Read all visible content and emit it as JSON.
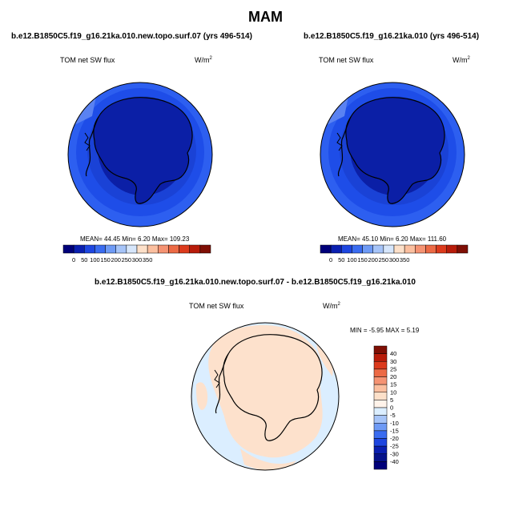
{
  "figure": {
    "title": "MAM",
    "colors": {
      "ocean_deep": "#0a28b8",
      "ocean_mid": "#1e4de8",
      "ocean_light": "#2d5ff0",
      "ice": "#0b1fa6",
      "diff_neutral": "#dbeeff",
      "diff_warm": "#fde1cc",
      "coast": "#000000"
    }
  },
  "panels": [
    {
      "title": "b.e12.B1850C5.f19_g16.21ka.010.new.topo.surf.07 (yrs 496-514)",
      "variable": "TOM net SW flux",
      "units": "W/m",
      "units_sup": "2",
      "stats": "MEAN=  44.45  Min=   6.20  Max= 109.23",
      "colorbar": {
        "labels": [
          "0",
          "50",
          "100",
          "150",
          "200",
          "250",
          "300",
          "350"
        ],
        "colors": [
          "#00007a",
          "#0a1fb0",
          "#1e46e0",
          "#3a6cf0",
          "#6e9af5",
          "#a6c4f8",
          "#d6e6fb",
          "#fde0c9",
          "#fbbf9f",
          "#f59373",
          "#ec6a45",
          "#dc3a1c",
          "#b81c0a",
          "#7f0f05"
        ]
      }
    },
    {
      "title": "b.e12.B1850C5.f19_g16.21ka.010 (yrs 496-514)",
      "variable": "TOM net SW flux",
      "units": "W/m",
      "units_sup": "2",
      "stats": "MEAN=  45.10  Min=   6.20  Max= 111.60",
      "colorbar": {
        "labels": [
          "0",
          "50",
          "100",
          "150",
          "200",
          "250",
          "300",
          "350"
        ],
        "colors": [
          "#00007a",
          "#0a1fb0",
          "#1e46e0",
          "#3a6cf0",
          "#6e9af5",
          "#a6c4f8",
          "#d6e6fb",
          "#fde0c9",
          "#fbbf9f",
          "#f59373",
          "#ec6a45",
          "#dc3a1c",
          "#b81c0a",
          "#7f0f05"
        ]
      }
    }
  ],
  "diff_panel": {
    "title": "b.e12.B1850C5.f19_g16.21ka.010.new.topo.surf.07 - b.e12.B1850C5.f19_g16.21ka.010",
    "variable": "TOM net SW flux",
    "units": "W/m",
    "units_sup": "2",
    "stats": "MIN =  -5.95 MAX =   5.19",
    "colorbar": {
      "labels": [
        "40",
        "30",
        "25",
        "20",
        "15",
        "10",
        "5",
        "0",
        "-5",
        "-10",
        "-15",
        "-20",
        "-25",
        "-30",
        "-40"
      ],
      "colors": [
        "#7f0f05",
        "#b81c0a",
        "#dc3a1c",
        "#ec6a45",
        "#f59373",
        "#fbbf9f",
        "#fde0c9",
        "#fff3ea",
        "#dbeeff",
        "#a6c4f8",
        "#6e9af5",
        "#3a6cf0",
        "#1e46e0",
        "#0a1fb0",
        "#06128a",
        "#00007a"
      ]
    }
  }
}
